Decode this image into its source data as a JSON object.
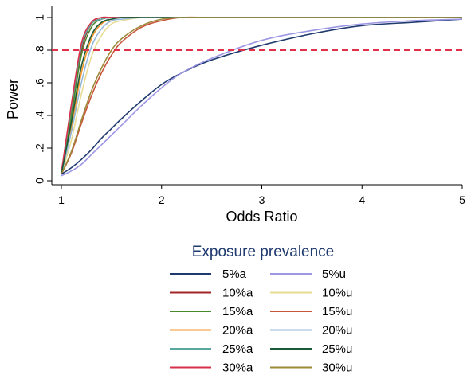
{
  "chart_data": {
    "type": "line",
    "title": "",
    "xlabel": "Odds Ratio",
    "ylabel": "Power",
    "xlim": [
      1,
      5
    ],
    "ylim": [
      0,
      1
    ],
    "x_ticks": [
      1,
      2,
      3,
      4,
      5
    ],
    "x_tick_labels": [
      "1",
      "2",
      "3",
      "4",
      "5"
    ],
    "y_ticks": [
      0,
      0.2,
      0.4,
      0.6,
      0.8,
      1
    ],
    "y_tick_labels": [
      "0",
      ".2",
      ".4",
      ".6",
      ".8",
      "1"
    ],
    "reference_line": {
      "y": 0.8,
      "style": "dashed",
      "color": "#e0304a"
    },
    "x": [
      1.0,
      1.1,
      1.2,
      1.3,
      1.4,
      1.5,
      1.6,
      1.8,
      2.0,
      2.2,
      2.5,
      3.0,
      3.5,
      4.0,
      4.5,
      5.0
    ],
    "legend": {
      "title": "Exposure prevalence",
      "placement": "bottom",
      "columns": 2
    },
    "series": [
      {
        "name": "5%a",
        "color": "#1f3a6e",
        "values": [
          0.04,
          0.08,
          0.13,
          0.19,
          0.26,
          0.32,
          0.38,
          0.49,
          0.59,
          0.66,
          0.74,
          0.83,
          0.9,
          0.95,
          0.97,
          0.99
        ]
      },
      {
        "name": "10%a",
        "color": "#a32424",
        "values": [
          0.05,
          0.43,
          0.8,
          0.96,
          0.99,
          1.0,
          1.0,
          1.0,
          1.0,
          1.0,
          1.0,
          1.0,
          1.0,
          1.0,
          1.0,
          1.0
        ]
      },
      {
        "name": "15%a",
        "color": "#4a8a2e",
        "values": [
          0.05,
          0.4,
          0.77,
          0.94,
          0.99,
          1.0,
          1.0,
          1.0,
          1.0,
          1.0,
          1.0,
          1.0,
          1.0,
          1.0,
          1.0,
          1.0
        ]
      },
      {
        "name": "20%a",
        "color": "#f0962e",
        "values": [
          0.05,
          0.33,
          0.66,
          0.87,
          0.96,
          0.99,
          1.0,
          1.0,
          1.0,
          1.0,
          1.0,
          1.0,
          1.0,
          1.0,
          1.0,
          1.0
        ]
      },
      {
        "name": "25%a",
        "color": "#5aa7a2",
        "values": [
          0.05,
          0.45,
          0.82,
          0.96,
          0.99,
          1.0,
          1.0,
          1.0,
          1.0,
          1.0,
          1.0,
          1.0,
          1.0,
          1.0,
          1.0,
          1.0
        ]
      },
      {
        "name": "30%a",
        "color": "#d9304a",
        "values": [
          0.05,
          0.47,
          0.84,
          0.97,
          1.0,
          1.0,
          1.0,
          1.0,
          1.0,
          1.0,
          1.0,
          1.0,
          1.0,
          1.0,
          1.0,
          1.0
        ]
      },
      {
        "name": "5%u",
        "color": "#9c96e4",
        "values": [
          0.03,
          0.06,
          0.1,
          0.16,
          0.22,
          0.28,
          0.34,
          0.46,
          0.57,
          0.66,
          0.75,
          0.86,
          0.92,
          0.96,
          0.98,
          0.99
        ]
      },
      {
        "name": "10%u",
        "color": "#e6dc94",
        "values": [
          0.04,
          0.25,
          0.53,
          0.76,
          0.89,
          0.96,
          0.98,
          1.0,
          1.0,
          1.0,
          1.0,
          1.0,
          1.0,
          1.0,
          1.0,
          1.0
        ]
      },
      {
        "name": "15%u",
        "color": "#c8543a",
        "values": [
          0.04,
          0.17,
          0.35,
          0.52,
          0.66,
          0.77,
          0.85,
          0.94,
          0.98,
          1.0,
          1.0,
          1.0,
          1.0,
          1.0,
          1.0,
          1.0
        ]
      },
      {
        "name": "20%u",
        "color": "#94b8d8",
        "values": [
          0.04,
          0.3,
          0.6,
          0.82,
          0.93,
          0.98,
          0.99,
          1.0,
          1.0,
          1.0,
          1.0,
          1.0,
          1.0,
          1.0,
          1.0,
          1.0
        ]
      },
      {
        "name": "25%u",
        "color": "#1b5a38",
        "values": [
          0.04,
          0.36,
          0.7,
          0.89,
          0.97,
          0.99,
          1.0,
          1.0,
          1.0,
          1.0,
          1.0,
          1.0,
          1.0,
          1.0,
          1.0,
          1.0
        ]
      },
      {
        "name": "30%u",
        "color": "#9c8a3a",
        "values": [
          0.04,
          0.18,
          0.37,
          0.55,
          0.69,
          0.8,
          0.87,
          0.95,
          0.99,
          1.0,
          1.0,
          1.0,
          1.0,
          1.0,
          1.0,
          1.0
        ]
      }
    ]
  }
}
